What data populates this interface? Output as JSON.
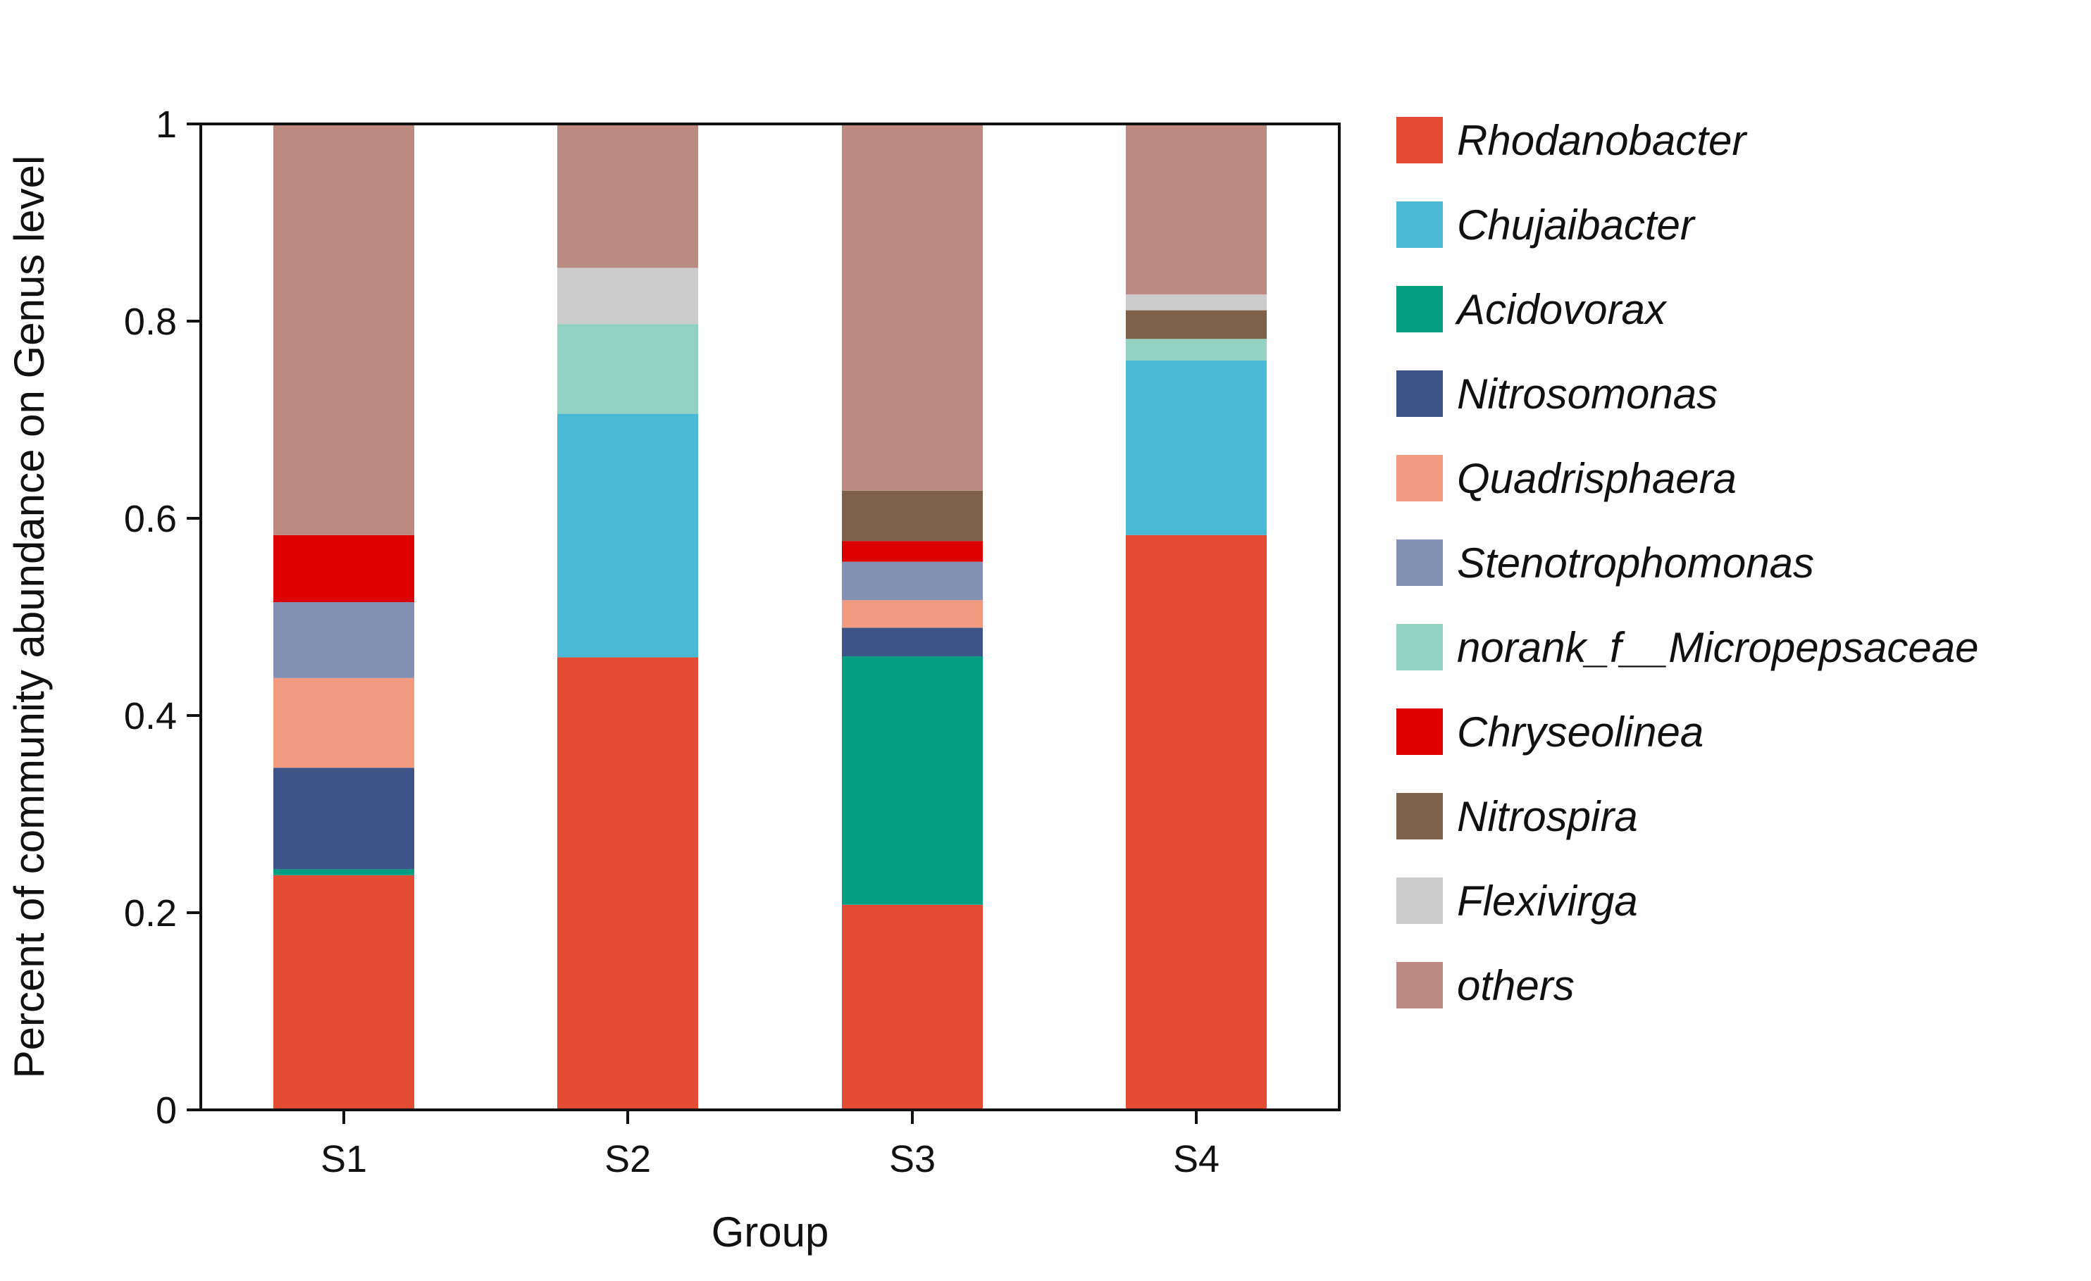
{
  "chart_data": {
    "type": "bar",
    "stacked": true,
    "title": "",
    "xlabel": "Group",
    "ylabel": "Percent of community abundance on Genus level",
    "ylim": [
      0,
      1
    ],
    "yticks": [
      0,
      0.2,
      0.4,
      0.6,
      0.8,
      1
    ],
    "ytick_labels": [
      "0",
      "0.2",
      "0.4",
      "0.6",
      "0.8",
      "1"
    ],
    "categories": [
      "S1",
      "S2",
      "S3",
      "S4"
    ],
    "legend_position": "right",
    "series": [
      {
        "name": "Rhodanobacter",
        "color": "#e34c33",
        "values": [
          0.238,
          0.459,
          0.208,
          0.583
        ]
      },
      {
        "name": "Chujaibacter",
        "color": "#4bb8d5",
        "values": [
          0.0,
          0.247,
          0.0,
          0.177
        ]
      },
      {
        "name": "Acidovorax",
        "color": "#049e84",
        "values": [
          0.006,
          0.0,
          0.252,
          0.0
        ]
      },
      {
        "name": "Nitrosomonas",
        "color": "#3d5488",
        "values": [
          0.103,
          0.0,
          0.029,
          0.0
        ]
      },
      {
        "name": "Quadrisphaera",
        "color": "#f29a7f",
        "values": [
          0.091,
          0.0,
          0.028,
          0.0
        ]
      },
      {
        "name": "Stenotrophomonas",
        "color": "#8591b4",
        "values": [
          0.077,
          0.0,
          0.039,
          0.0
        ]
      },
      {
        "name": "norank_f__Micropepsaceae",
        "color": "#91d2c1",
        "values": [
          0.0,
          0.091,
          0.0,
          0.022
        ]
      },
      {
        "name": "Chryseolinea",
        "color": "#dc0000",
        "values": [
          0.068,
          0.0,
          0.021,
          0.0
        ]
      },
      {
        "name": "Nitrospira",
        "color": "#7e6148",
        "values": [
          0.0,
          0.0,
          0.051,
          0.029
        ]
      },
      {
        "name": "Flexivirga",
        "color": "#cccccc",
        "values": [
          0.0,
          0.057,
          0.0,
          0.016
        ]
      },
      {
        "name": "others",
        "color": "#bb8b82",
        "values": [
          0.417,
          0.146,
          0.372,
          0.173
        ]
      }
    ]
  }
}
